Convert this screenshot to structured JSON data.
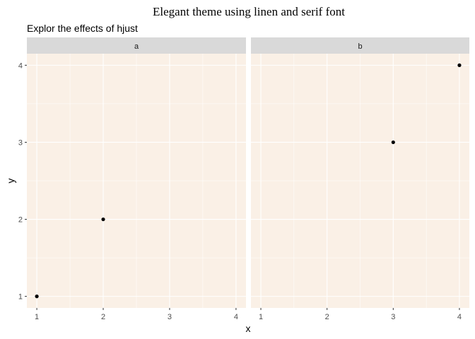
{
  "chart_data": {
    "type": "scatter",
    "title": "Elegant theme using linen and serif font",
    "subtitle": "Explor the effects of hjust",
    "xlabel": "x",
    "ylabel": "y",
    "xlim": [
      0.85,
      4.15
    ],
    "ylim": [
      0.85,
      4.15
    ],
    "xticks": [
      1,
      2,
      3,
      4
    ],
    "yticks": [
      1,
      2,
      3,
      4
    ],
    "grid": true,
    "panel_background": "#faf0e6",
    "strip_background": "#d9d9d9",
    "gridline_color": "#ffffff",
    "point_color": "#000000",
    "facets": [
      {
        "label": "a",
        "points": [
          {
            "x": 1,
            "y": 1
          },
          {
            "x": 2,
            "y": 2
          }
        ]
      },
      {
        "label": "b",
        "points": [
          {
            "x": 3,
            "y": 3
          },
          {
            "x": 4,
            "y": 4
          }
        ]
      }
    ]
  }
}
